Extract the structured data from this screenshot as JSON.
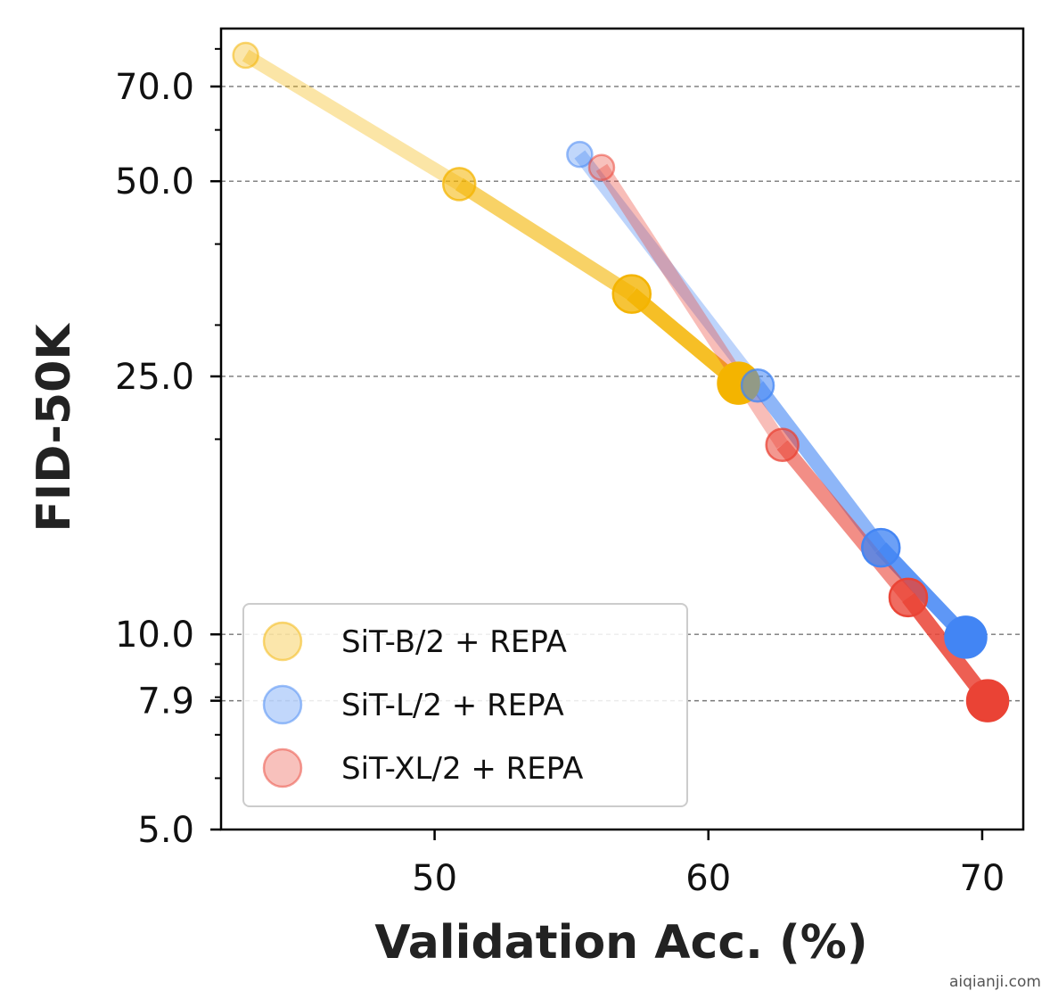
{
  "chart_data": {
    "type": "line",
    "xlabel": "Validation Acc. (%)",
    "ylabel": "FID-50K",
    "xlim": [
      42.2,
      71.5
    ],
    "ylim": [
      5.0,
      86.0
    ],
    "y_scale": "log",
    "x_ticks": [
      50,
      60,
      70
    ],
    "x_tick_labels": [
      "50",
      "60",
      "70"
    ],
    "y_ticks": [
      5.0,
      7.9,
      10.0,
      25.0,
      50.0,
      70.0
    ],
    "y_tick_labels": [
      "5.0",
      "7.9",
      "10.0",
      "25.0",
      "50.0",
      "70.0"
    ],
    "y_minor_ticks": [
      6,
      7,
      8,
      9,
      20,
      30,
      40,
      60,
      80
    ],
    "grid": "horizontal dashed at major y ticks",
    "legend_position": "lower-left",
    "series": [
      {
        "name": "SiT-B/2 + REPA",
        "color": "#F4B400",
        "x": [
          43.1,
          50.9,
          57.2,
          61.1
        ],
        "y": [
          78.2,
          49.5,
          33.5,
          24.4
        ]
      },
      {
        "name": "SiT-L/2 + REPA",
        "color": "#4285F4",
        "x": [
          55.3,
          61.8,
          66.3,
          69.4
        ],
        "y": [
          55.0,
          24.2,
          13.6,
          9.9
        ]
      },
      {
        "name": "SiT-XL/2 + REPA",
        "color": "#EA4335",
        "x": [
          56.1,
          62.7,
          67.3,
          70.2
        ],
        "y": [
          52.5,
          19.6,
          11.4,
          7.9
        ]
      }
    ]
  },
  "watermark": "aiqianji.com"
}
